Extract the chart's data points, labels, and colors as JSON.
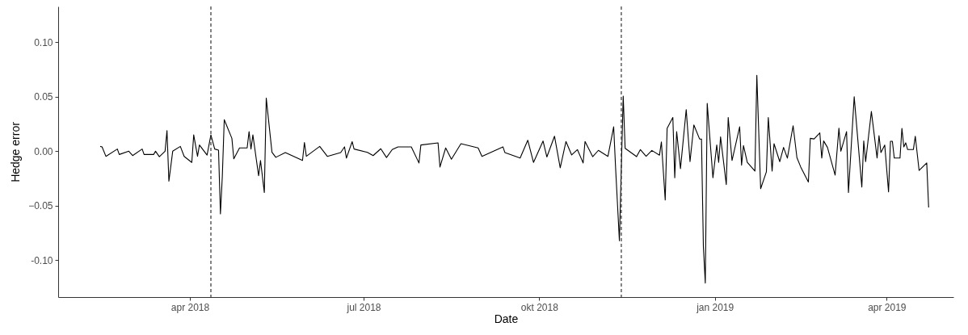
{
  "chart_data": {
    "type": "line",
    "xlabel": "Date",
    "ylabel": "Hedge error",
    "xlim": [
      "2018-01-22",
      "2019-05-06"
    ],
    "xticks": [
      {
        "value": "2018-04-01",
        "label": "apr 2018"
      },
      {
        "value": "2018-07-01",
        "label": "jul 2018"
      },
      {
        "value": "2018-10-01",
        "label": "okt 2018"
      },
      {
        "value": "2019-01-01",
        "label": "jan 2019"
      },
      {
        "value": "2019-04-01",
        "label": "apr 2019"
      }
    ],
    "ylim": [
      -0.134,
      0.133
    ],
    "yticks": [
      {
        "value": -0.1,
        "label": "-0.10"
      },
      -0.05,
      {
        "value": 0,
        "label": "0.00"
      },
      0.05,
      {
        "value": 0.1,
        "label": "0.10"
      }
    ],
    "ref_lines": [
      {
        "axis": "x",
        "value": "2018-04-12",
        "line_style": "dashed",
        "color": "#333333"
      },
      {
        "axis": "x",
        "value": "2018-11-13",
        "line_style": "dashed",
        "color": "#333333"
      }
    ],
    "series": [
      {
        "color": "#000000",
        "x": [
          "2018-02-13",
          "2018-02-14",
          "2018-02-16",
          "2018-02-22",
          "2018-02-23",
          "2018-02-28",
          "2018-03-02",
          "2018-03-07",
          "2018-03-08",
          "2018-03-13",
          "2018-03-14",
          "2018-03-16",
          "2018-03-19",
          "2018-03-20",
          "2018-03-21",
          "2018-03-23",
          "2018-03-27",
          "2018-03-29",
          "2018-04-02",
          "2018-04-03",
          "2018-04-05",
          "2018-04-06",
          "2018-04-10",
          "2018-04-12",
          "2018-04-14",
          "2018-04-16",
          "2018-04-17",
          "2018-04-18",
          "2018-04-19",
          "2018-04-23",
          "2018-04-24",
          "2018-04-27",
          "2018-05-01",
          "2018-05-02",
          "2018-05-03",
          "2018-05-04",
          "2018-05-07",
          "2018-05-08",
          "2018-05-10",
          "2018-05-11",
          "2018-05-14",
          "2018-05-16",
          "2018-05-21",
          "2018-05-30",
          "2018-05-31",
          "2018-06-01",
          "2018-06-08",
          "2018-06-12",
          "2018-06-19",
          "2018-06-21",
          "2018-06-22",
          "2018-06-25",
          "2018-06-26",
          "2018-07-03",
          "2018-07-06",
          "2018-07-10",
          "2018-07-13",
          "2018-07-16",
          "2018-07-19",
          "2018-07-26",
          "2018-07-30",
          "2018-07-31",
          "2018-08-09",
          "2018-08-10",
          "2018-08-13",
          "2018-08-16",
          "2018-08-21",
          "2018-08-30",
          "2018-09-01",
          "2018-09-12",
          "2018-09-13",
          "2018-09-21",
          "2018-09-25",
          "2018-09-28",
          "2018-10-03",
          "2018-10-05",
          "2018-10-09",
          "2018-10-12",
          "2018-10-15",
          "2018-10-18",
          "2018-10-21",
          "2018-10-24",
          "2018-10-25",
          "2018-10-29",
          "2018-11-01",
          "2018-11-06",
          "2018-11-09",
          "2018-11-10",
          "2018-11-12",
          "2018-11-14",
          "2018-11-15",
          "2018-11-21",
          "2018-11-23",
          "2018-11-26",
          "2018-11-29",
          "2018-12-03",
          "2018-12-04",
          "2018-12-06",
          "2018-12-07",
          "2018-12-10",
          "2018-12-11",
          "2018-12-12",
          "2018-12-14",
          "2018-12-17",
          "2018-12-19",
          "2018-12-21",
          "2018-12-24",
          "2018-12-25",
          "2018-12-26",
          "2018-12-27",
          "2018-12-28",
          "2018-12-31",
          "2019-01-02",
          "2019-01-03",
          "2019-01-04",
          "2019-01-07",
          "2019-01-08",
          "2019-01-10",
          "2019-01-14",
          "2019-01-15",
          "2019-01-16",
          "2019-01-18",
          "2019-01-22",
          "2019-01-23",
          "2019-01-25",
          "2019-01-28",
          "2019-01-29",
          "2019-01-31",
          "2019-02-01",
          "2019-02-04",
          "2019-02-06",
          "2019-02-08",
          "2019-02-11",
          "2019-02-13",
          "2019-02-15",
          "2019-02-19",
          "2019-02-20",
          "2019-02-22",
          "2019-02-25",
          "2019-02-26",
          "2019-02-27",
          "2019-03-01",
          "2019-03-05",
          "2019-03-07",
          "2019-03-08",
          "2019-03-11",
          "2019-03-12",
          "2019-03-15",
          "2019-03-19",
          "2019-03-20",
          "2019-03-21",
          "2019-03-24",
          "2019-03-27",
          "2019-03-28",
          "2019-03-29",
          "2019-03-31",
          "2019-04-02",
          "2019-04-03",
          "2019-04-04",
          "2019-04-05",
          "2019-04-08",
          "2019-04-09",
          "2019-04-10",
          "2019-04-11",
          "2019-04-12",
          "2019-04-15",
          "2019-04-16",
          "2019-04-18",
          "2019-04-22",
          "2019-04-23"
        ],
        "values": [
          0.0044,
          0.004,
          -0.0047,
          0.002,
          -0.003,
          0.0,
          -0.004,
          0.002,
          -0.003,
          -0.003,
          0.0,
          -0.005,
          0.0,
          0.019,
          -0.0276,
          0.0,
          0.0044,
          -0.0048,
          -0.0103,
          0.015,
          -0.0047,
          0.0057,
          -0.0035,
          0.015,
          0.002,
          0.001,
          -0.0576,
          -0.0226,
          0.029,
          0.0118,
          -0.007,
          0.003,
          0.003,
          0.018,
          0.002,
          0.015,
          -0.0226,
          -0.0085,
          -0.038,
          0.0487,
          -0.001,
          -0.0056,
          -0.0012,
          -0.0085,
          0.008,
          -0.0047,
          0.0044,
          -0.0047,
          -0.0012,
          0.004,
          -0.0063,
          0.0088,
          0.002,
          -0.001,
          -0.004,
          0.0023,
          -0.0058,
          0.0015,
          0.004,
          0.004,
          -0.0108,
          0.0057,
          0.0077,
          -0.0145,
          0.003,
          -0.0073,
          0.0069,
          0.003,
          -0.0048,
          0.004,
          -0.0012,
          -0.0063,
          0.0101,
          -0.0103,
          0.0094,
          -0.0053,
          0.0138,
          -0.0152,
          0.0089,
          -0.0034,
          0.0015,
          -0.0108,
          0.0089,
          -0.005,
          0.0008,
          -0.0047,
          0.0224,
          -0.015,
          -0.0822,
          0.0507,
          0.0026,
          -0.005,
          0.0015,
          -0.0046,
          0.0007,
          -0.0036,
          0.0086,
          -0.0448,
          0.021,
          0.031,
          -0.0244,
          0.018,
          -0.016,
          0.0382,
          -0.0096,
          0.0242,
          0.0113,
          0.0111,
          -0.0879,
          -0.1211,
          0.0439,
          -0.0244,
          0.0057,
          -0.0103,
          0.0131,
          -0.0307,
          0.031,
          -0.0085,
          0.0224,
          -0.0128,
          0.0052,
          -0.0103,
          -0.0182,
          0.0697,
          -0.0344,
          -0.019,
          0.031,
          -0.0182,
          0.0069,
          -0.0096,
          0.0035,
          -0.0063,
          0.0234,
          -0.0059,
          -0.0145,
          -0.0283,
          0.0118,
          0.0113,
          0.0168,
          -0.0063,
          0.0094,
          0.0035,
          -0.0219,
          0.0212,
          0.0,
          0.018,
          -0.038,
          0.05,
          -0.033,
          0.0094,
          -0.0096,
          0.0365,
          -0.0063,
          0.0143,
          -0.0012,
          0.0057,
          -0.0374,
          0.0091,
          0.0091,
          -0.0063,
          -0.0063,
          0.021,
          0.004,
          0.0077,
          0.0015,
          0.0015,
          0.0138,
          -0.0177,
          -0.0108,
          -0.0517
        ]
      }
    ]
  }
}
